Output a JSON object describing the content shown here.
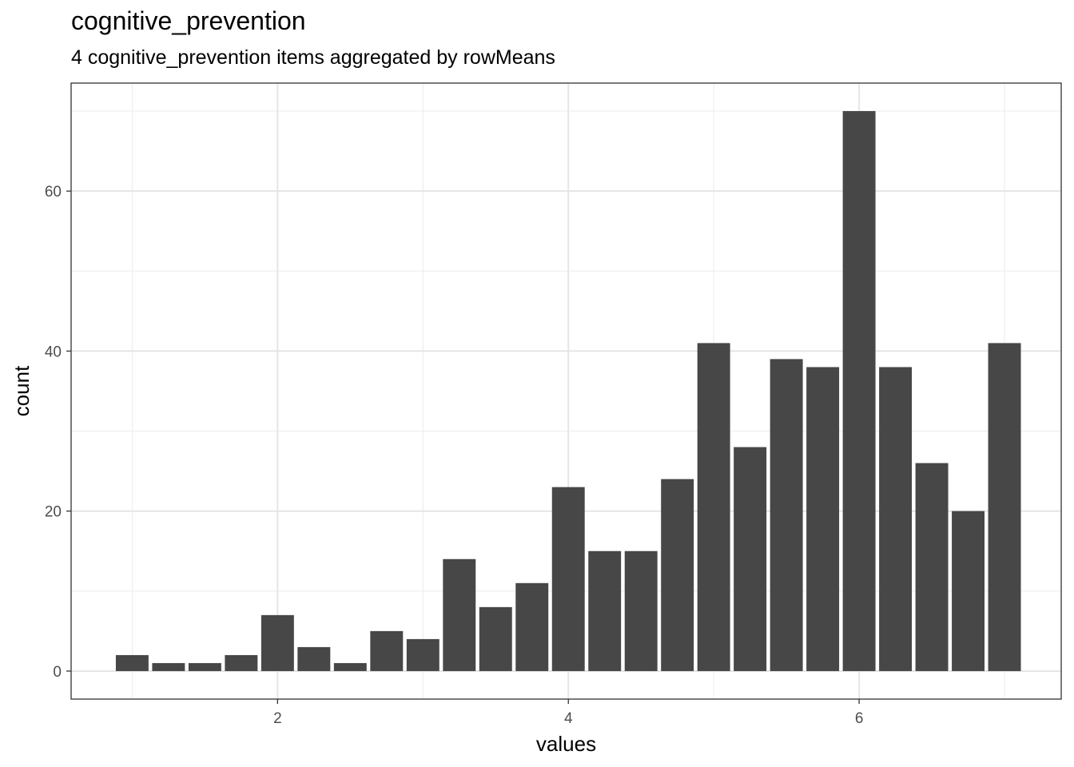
{
  "chart_data": {
    "type": "bar",
    "title": "cognitive_prevention",
    "subtitle": "4 cognitive_prevention items aggregated by rowMeans",
    "xlabel": "values",
    "ylabel": "count",
    "x": [
      1.0,
      1.25,
      1.5,
      1.75,
      2.0,
      2.25,
      2.5,
      2.75,
      3.0,
      3.25,
      3.5,
      3.75,
      4.0,
      4.25,
      4.5,
      4.75,
      5.0,
      5.25,
      5.5,
      5.75,
      6.0,
      6.25,
      6.5,
      6.75,
      7.0
    ],
    "values": [
      2,
      1,
      1,
      2,
      7,
      3,
      1,
      5,
      4,
      14,
      8,
      11,
      23,
      15,
      15,
      24,
      41,
      28,
      39,
      38,
      70,
      38,
      26,
      20,
      41
    ],
    "xlim": [
      0.58,
      7.39
    ],
    "ylim": [
      -3.5,
      73.5
    ],
    "x_ticks": [
      2,
      4,
      6
    ],
    "x_tick_labels": [
      "2",
      "4",
      "6"
    ],
    "y_ticks": [
      0,
      20,
      40,
      60
    ],
    "y_tick_labels": [
      "0",
      "20",
      "40",
      "60"
    ],
    "grid": true,
    "bar_color": "#474747"
  }
}
